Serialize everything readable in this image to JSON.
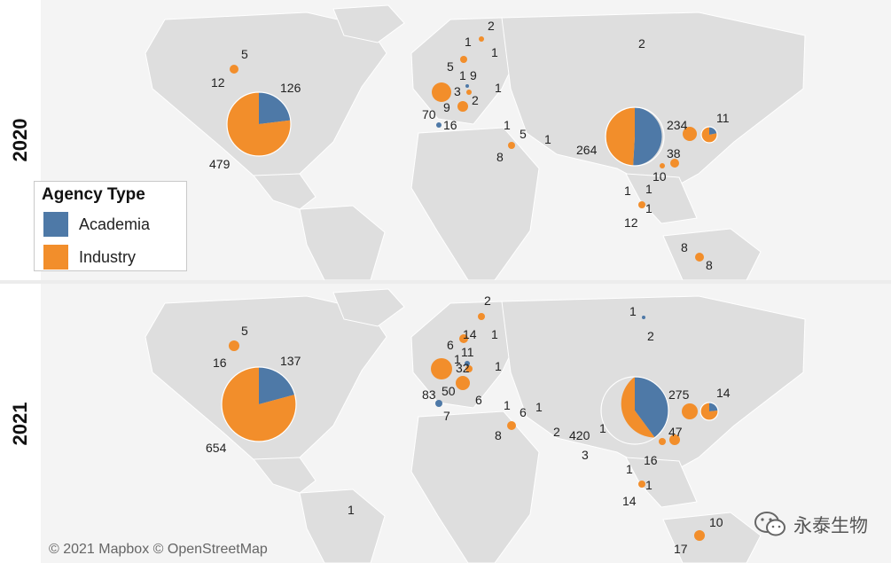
{
  "years": [
    "2020",
    "2021"
  ],
  "legend": {
    "title": "Agency Type",
    "items": [
      {
        "label": "Academia",
        "color": "#4e79a7"
      },
      {
        "label": "Industry",
        "color": "#f28e2b"
      }
    ]
  },
  "credit": "© 2021 Mapbox © OpenStreetMap",
  "watermark": "永泰生物",
  "maps": [
    {
      "year": "2020",
      "pies": [
        {
          "region": "canada-west",
          "academia": 0,
          "industry": 12
        },
        {
          "region": "canada-east",
          "academia": 0,
          "industry": 5
        },
        {
          "region": "united-states",
          "academia": 126,
          "industry": 479
        },
        {
          "region": "china",
          "academia": 264,
          "industry": 234
        },
        {
          "region": "japan",
          "academia": 11,
          "industry": 38
        }
      ],
      "labels": [
        "5",
        "12",
        "126",
        "479",
        "2",
        "1",
        "1",
        "5",
        "1",
        "9",
        "1",
        "3",
        "2",
        "9",
        "70",
        "16",
        "1",
        "5",
        "1",
        "8",
        "2",
        "264",
        "234",
        "11",
        "38",
        "10",
        "1",
        "1",
        "1",
        "12",
        "8",
        "8"
      ]
    },
    {
      "year": "2021",
      "pies": [
        {
          "region": "canada-west",
          "academia": 0,
          "industry": 16
        },
        {
          "region": "canada-east",
          "academia": 0,
          "industry": 5
        },
        {
          "region": "united-states",
          "academia": 137,
          "industry": 654
        },
        {
          "region": "china",
          "academia": 275,
          "industry": 420
        },
        {
          "region": "japan",
          "academia": 14,
          "industry": 47
        }
      ],
      "labels": [
        "5",
        "16",
        "137",
        "654",
        "2",
        "14",
        "1",
        "6",
        "11",
        "1",
        "1",
        "32",
        "83",
        "50",
        "6",
        "7",
        "1",
        "6",
        "1",
        "8",
        "2",
        "1",
        "2",
        "420",
        "1",
        "3",
        "275",
        "14",
        "47",
        "16",
        "1",
        "1",
        "14",
        "1",
        "10",
        "17"
      ]
    }
  ]
}
